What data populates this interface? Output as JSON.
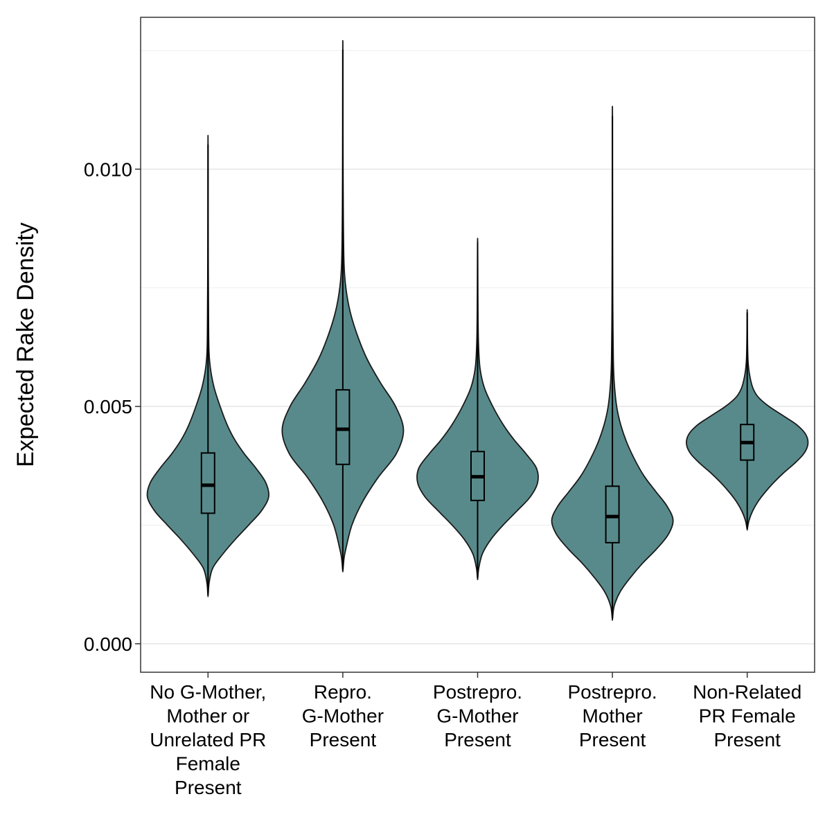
{
  "chart_data": {
    "type": "violin",
    "ylabel": "Expected Rake Density",
    "xlabel": "",
    "ylim": [
      -0.0006,
      0.0132
    ],
    "yticks": [
      0.0,
      0.005,
      0.01
    ],
    "ytick_labels": [
      "0.000",
      "0.005",
      "0.010"
    ],
    "grid": true,
    "fill_color": "#588a8b",
    "outline_color": "#1a1a1a",
    "categories": [
      {
        "label": [
          "No G-Mother,",
          "Mother or",
          "Unrelated PR",
          "Female",
          "Present"
        ],
        "min": 0.00103,
        "max": 0.01052,
        "q1": 0.00275,
        "median": 0.00334,
        "q3": 0.00402,
        "density": [
          [
            0.00103,
            0.002
          ],
          [
            0.0013,
            0.02
          ],
          [
            0.0016,
            0.08
          ],
          [
            0.0019,
            0.25
          ],
          [
            0.0022,
            0.45
          ],
          [
            0.0025,
            0.67
          ],
          [
            0.0028,
            0.88
          ],
          [
            0.0031,
            1.0
          ],
          [
            0.0034,
            0.95
          ],
          [
            0.0037,
            0.79
          ],
          [
            0.004,
            0.6
          ],
          [
            0.0043,
            0.44
          ],
          [
            0.0046,
            0.32
          ],
          [
            0.005,
            0.2
          ],
          [
            0.0054,
            0.1
          ],
          [
            0.0058,
            0.04
          ],
          [
            0.0062,
            0.015
          ],
          [
            0.007,
            0.008
          ],
          [
            0.008,
            0.004
          ],
          [
            0.009,
            0.002
          ],
          [
            0.01052,
            0.001
          ]
        ]
      },
      {
        "label": [
          "Repro.",
          "G-Mother",
          "Present"
        ],
        "min": 0.00155,
        "max": 0.01252,
        "q1": 0.00378,
        "median": 0.00452,
        "q3": 0.00535,
        "density": [
          [
            0.00155,
            0.002
          ],
          [
            0.0018,
            0.02
          ],
          [
            0.002,
            0.05
          ],
          [
            0.0025,
            0.15
          ],
          [
            0.003,
            0.33
          ],
          [
            0.0035,
            0.58
          ],
          [
            0.004,
            0.88
          ],
          [
            0.0045,
            1.0
          ],
          [
            0.005,
            0.87
          ],
          [
            0.0055,
            0.62
          ],
          [
            0.006,
            0.4
          ],
          [
            0.0065,
            0.24
          ],
          [
            0.007,
            0.12
          ],
          [
            0.0075,
            0.05
          ],
          [
            0.008,
            0.02
          ],
          [
            0.009,
            0.008
          ],
          [
            0.01,
            0.004
          ],
          [
            0.011,
            0.002
          ],
          [
            0.01252,
            0.001
          ]
        ]
      },
      {
        "label": [
          "Postrepro.",
          "G-Mother",
          "Present"
        ],
        "min": 0.00138,
        "max": 0.00846,
        "q1": 0.00302,
        "median": 0.00352,
        "q3": 0.00405,
        "density": [
          [
            0.00138,
            0.002
          ],
          [
            0.0016,
            0.02
          ],
          [
            0.0019,
            0.08
          ],
          [
            0.0022,
            0.22
          ],
          [
            0.0025,
            0.42
          ],
          [
            0.0028,
            0.65
          ],
          [
            0.0031,
            0.87
          ],
          [
            0.0034,
            0.99
          ],
          [
            0.0037,
            0.97
          ],
          [
            0.004,
            0.8
          ],
          [
            0.0043,
            0.6
          ],
          [
            0.0046,
            0.43
          ],
          [
            0.005,
            0.25
          ],
          [
            0.0054,
            0.11
          ],
          [
            0.0058,
            0.04
          ],
          [
            0.0063,
            0.015
          ],
          [
            0.007,
            0.006
          ],
          [
            0.0078,
            0.003
          ],
          [
            0.00846,
            0.001
          ]
        ]
      },
      {
        "label": [
          "Postrepro.",
          "Mother",
          "Present"
        ],
        "min": 0.00053,
        "max": 0.01112,
        "q1": 0.00213,
        "median": 0.00268,
        "q3": 0.00332,
        "density": [
          [
            0.00053,
            0.002
          ],
          [
            0.0008,
            0.03
          ],
          [
            0.0011,
            0.13
          ],
          [
            0.0014,
            0.3
          ],
          [
            0.0017,
            0.5
          ],
          [
            0.002,
            0.73
          ],
          [
            0.0023,
            0.92
          ],
          [
            0.0026,
            1.0
          ],
          [
            0.0029,
            0.9
          ],
          [
            0.0032,
            0.72
          ],
          [
            0.0035,
            0.54
          ],
          [
            0.0038,
            0.4
          ],
          [
            0.0042,
            0.25
          ],
          [
            0.0046,
            0.14
          ],
          [
            0.005,
            0.07
          ],
          [
            0.0055,
            0.03
          ],
          [
            0.006,
            0.015
          ],
          [
            0.007,
            0.007
          ],
          [
            0.008,
            0.004
          ],
          [
            0.0095,
            0.002
          ],
          [
            0.01112,
            0.001
          ]
        ]
      },
      {
        "label": [
          "Non-Related",
          "PR Female",
          "Present"
        ],
        "min": 0.00242,
        "max": 0.00698,
        "q1": 0.00387,
        "median": 0.00424,
        "q3": 0.00462,
        "density": [
          [
            0.00242,
            0.002
          ],
          [
            0.0026,
            0.03
          ],
          [
            0.0028,
            0.09
          ],
          [
            0.003,
            0.18
          ],
          [
            0.0032,
            0.3
          ],
          [
            0.0034,
            0.44
          ],
          [
            0.0036,
            0.6
          ],
          [
            0.0038,
            0.78
          ],
          [
            0.004,
            0.93
          ],
          [
            0.0042,
            1.0
          ],
          [
            0.0044,
            0.97
          ],
          [
            0.0046,
            0.83
          ],
          [
            0.0048,
            0.6
          ],
          [
            0.005,
            0.36
          ],
          [
            0.0052,
            0.18
          ],
          [
            0.0054,
            0.09
          ],
          [
            0.0057,
            0.035
          ],
          [
            0.006,
            0.012
          ],
          [
            0.0065,
            0.004
          ],
          [
            0.00698,
            0.001
          ]
        ]
      }
    ]
  }
}
